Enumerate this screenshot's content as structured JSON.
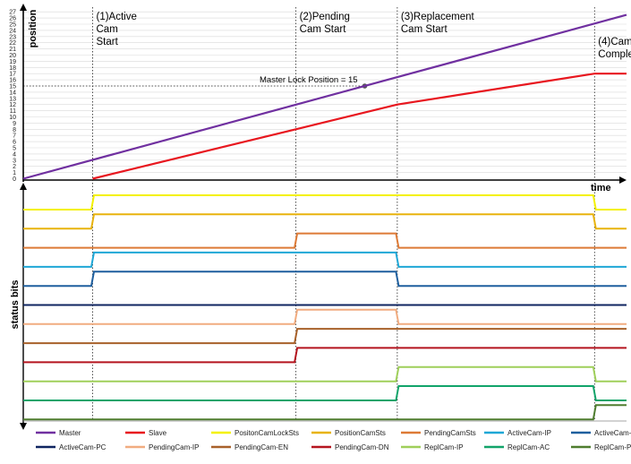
{
  "axes": {
    "y_label": "position",
    "x_label": "time",
    "status_label": "status bits",
    "y_ticks": [
      "0",
      "1",
      "2",
      "3",
      "4",
      "5",
      "6",
      "7",
      "8",
      "9",
      "10",
      "11",
      "12",
      "13",
      "14",
      "15",
      "16",
      "17",
      "18",
      "19",
      "20",
      "21",
      "22",
      "23",
      "24",
      "25",
      "26",
      "27"
    ]
  },
  "events": [
    {
      "id": "active",
      "lines": [
        "(1)Active",
        "Cam",
        "Start"
      ],
      "t": 0.115
    },
    {
      "id": "pending",
      "lines": [
        "(2)Pending",
        "Cam Start"
      ],
      "t": 0.452
    },
    {
      "id": "replacement",
      "lines": [
        "(3)Replacement",
        "Cam Start"
      ],
      "t": 0.62
    },
    {
      "id": "complete",
      "lines": [
        "(4)Cam",
        "Complete"
      ],
      "t": 0.947
    }
  ],
  "master_lock": {
    "label": "Master Lock Position = 15",
    "value": 15
  },
  "curves": {
    "master": {
      "color": "#7030a0",
      "points": [
        [
          0,
          0
        ],
        [
          1,
          26.5
        ]
      ]
    },
    "slave": {
      "color": "#e8171f",
      "points": [
        [
          0.115,
          0
        ],
        [
          0.452,
          8
        ],
        [
          0.62,
          12
        ],
        [
          0.947,
          17
        ],
        [
          1,
          17
        ]
      ]
    }
  },
  "status_bits": [
    {
      "name": "PositonCamLockSts",
      "color": "#f4f100",
      "steps": [
        [
          0,
          0
        ],
        [
          0.115,
          1
        ],
        [
          0.947,
          0
        ]
      ]
    },
    {
      "name": "PositionCamSts",
      "color": "#e8b30d",
      "steps": [
        [
          0,
          0
        ],
        [
          0.115,
          1
        ],
        [
          0.947,
          0
        ]
      ]
    },
    {
      "name": "PendingCamSts",
      "color": "#dd7a36",
      "steps": [
        [
          0,
          0
        ],
        [
          0.452,
          1
        ],
        [
          0.62,
          0
        ]
      ]
    },
    {
      "name": "ActiveCam-IP",
      "color": "#1fa7d6",
      "steps": [
        [
          0,
          0
        ],
        [
          0.115,
          1
        ],
        [
          0.62,
          0
        ]
      ]
    },
    {
      "name": "ActiveCam-AC",
      "color": "#1f5f9e",
      "steps": [
        [
          0,
          0
        ],
        [
          0.115,
          1
        ],
        [
          0.62,
          0
        ]
      ]
    },
    {
      "name": "ActiveCam-PC",
      "color": "#0f2460",
      "steps": [
        [
          0,
          0
        ]
      ]
    },
    {
      "name": "PendingCam-IP",
      "color": "#f1ac80",
      "steps": [
        [
          0,
          0
        ],
        [
          0.452,
          1
        ],
        [
          0.62,
          0
        ]
      ]
    },
    {
      "name": "PendingCam-EN",
      "color": "#a8612a",
      "steps": [
        [
          0,
          0
        ],
        [
          0.452,
          1
        ]
      ]
    },
    {
      "name": "PendingCam-DN",
      "color": "#b5151f",
      "steps": [
        [
          0,
          0
        ],
        [
          0.452,
          1
        ]
      ]
    },
    {
      "name": "ReplCam-IP",
      "color": "#9fcf5a",
      "steps": [
        [
          0,
          0
        ],
        [
          0.62,
          1
        ],
        [
          0.947,
          0
        ]
      ]
    },
    {
      "name": "ReplCam-AC",
      "color": "#12a46a",
      "steps": [
        [
          0,
          0
        ],
        [
          0.62,
          1
        ],
        [
          0.947,
          0
        ]
      ]
    },
    {
      "name": "ReplCam-PC",
      "color": "#4f7d2f",
      "steps": [
        [
          0,
          0
        ],
        [
          0.947,
          1
        ]
      ]
    }
  ],
  "legend": [
    {
      "label": "Master",
      "color": "#7030a0"
    },
    {
      "label": "Slave",
      "color": "#e8171f"
    },
    {
      "label": "PositonCamLockSts",
      "color": "#f4f100"
    },
    {
      "label": "PositionCamSts",
      "color": "#e8b30d"
    },
    {
      "label": "PendingCamSts",
      "color": "#dd7a36"
    },
    {
      "label": "ActiveCam-IP",
      "color": "#1fa7d6"
    },
    {
      "label": "ActiveCam-AC",
      "color": "#1f5f9e"
    },
    {
      "label": "ActiveCam-PC",
      "color": "#0f2460"
    },
    {
      "label": "PendingCam-IP",
      "color": "#f1ac80"
    },
    {
      "label": "PendingCam-EN",
      "color": "#a8612a"
    },
    {
      "label": "PendingCam-DN",
      "color": "#b5151f"
    },
    {
      "label": "ReplCam-IP",
      "color": "#9fcf5a"
    },
    {
      "label": "ReplCam-AC",
      "color": "#12a46a"
    },
    {
      "label": "ReplCam-PC",
      "color": "#4f7d2f"
    }
  ]
}
